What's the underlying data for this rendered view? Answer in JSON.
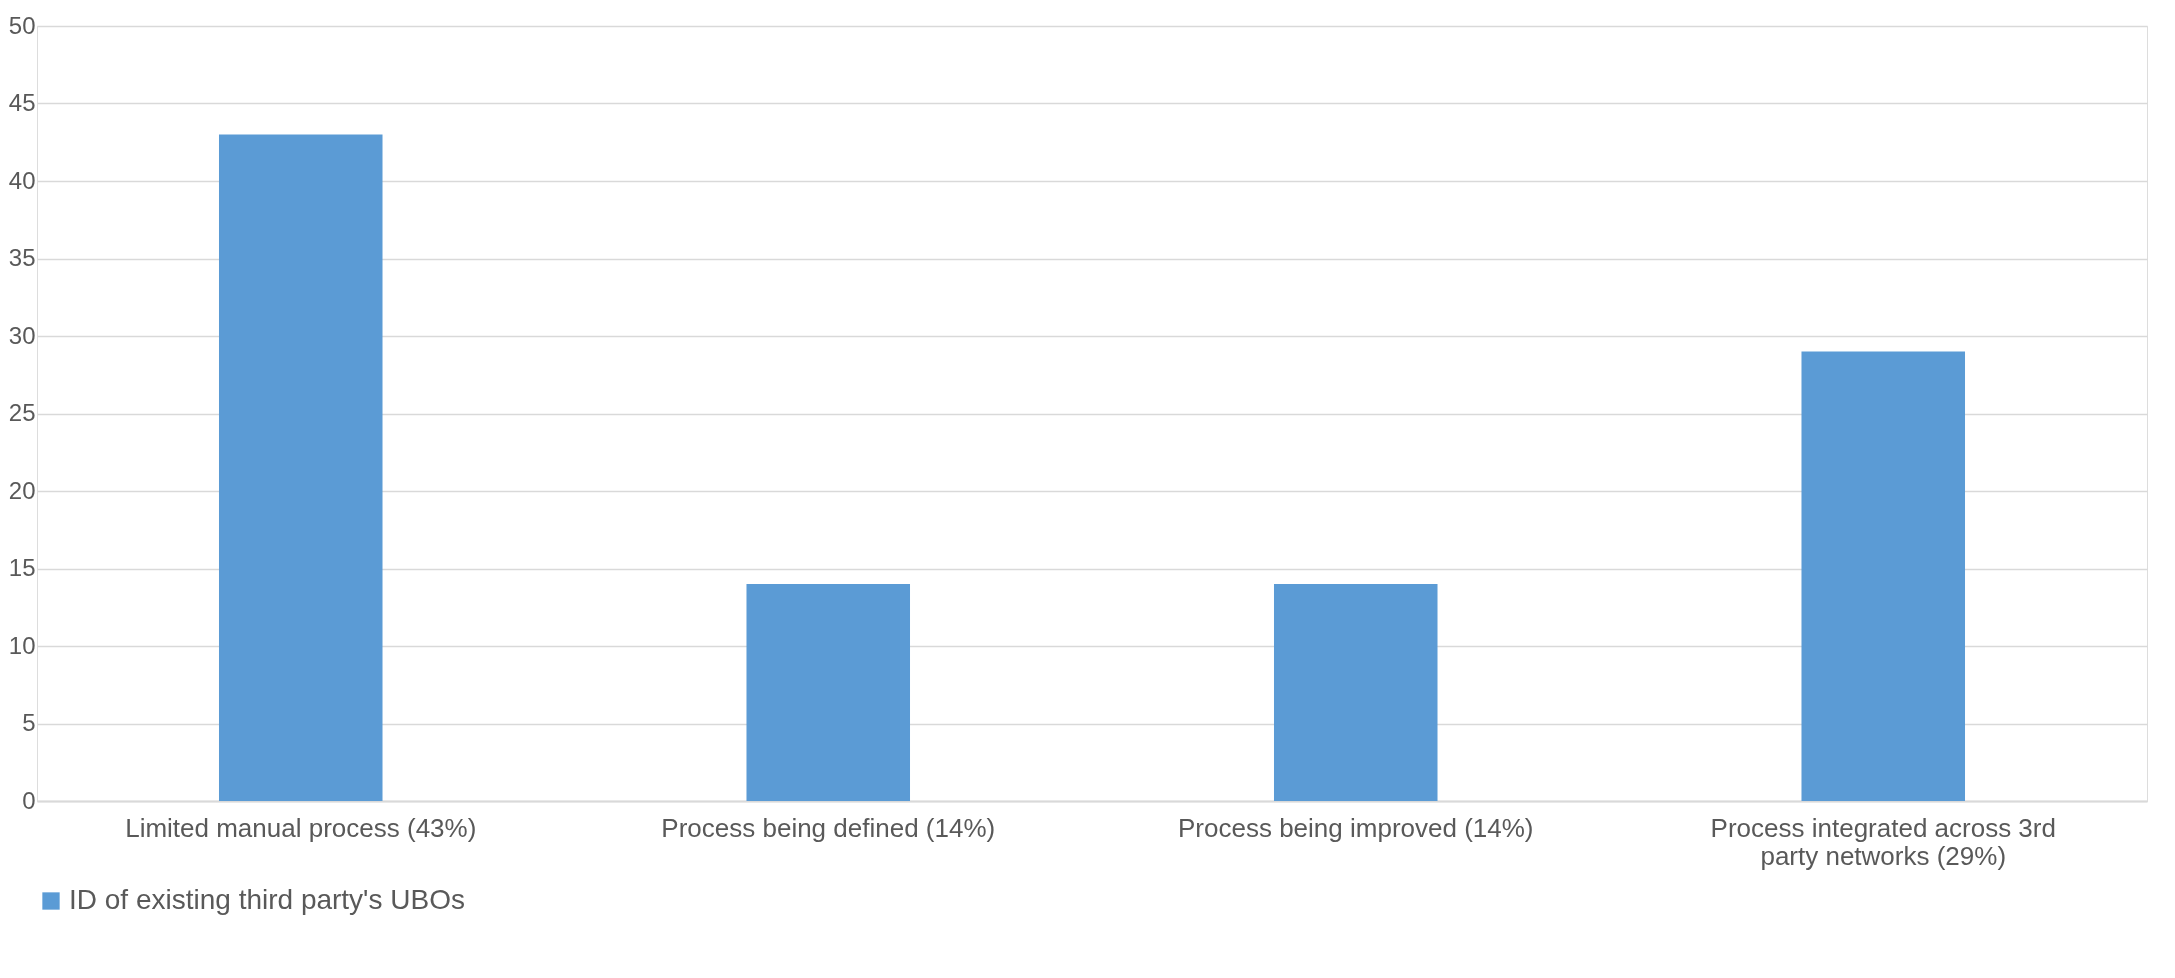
{
  "chart_data": {
    "type": "bar",
    "categories": [
      "Limited manual process (43%)",
      "Process being defined (14%)",
      "Process being improved (14%)",
      "Process integrated across 3rd party networks (29%)"
    ],
    "series": [
      {
        "name": "ID of existing third party's UBOs",
        "color": "#5b9bd5",
        "values": [
          43,
          14,
          14,
          29
        ]
      }
    ],
    "ylim": [
      0,
      50
    ],
    "yticks": [
      0,
      5,
      10,
      15,
      20,
      25,
      30,
      35,
      40,
      45,
      50
    ],
    "grid": "y",
    "legend": "bottom"
  }
}
